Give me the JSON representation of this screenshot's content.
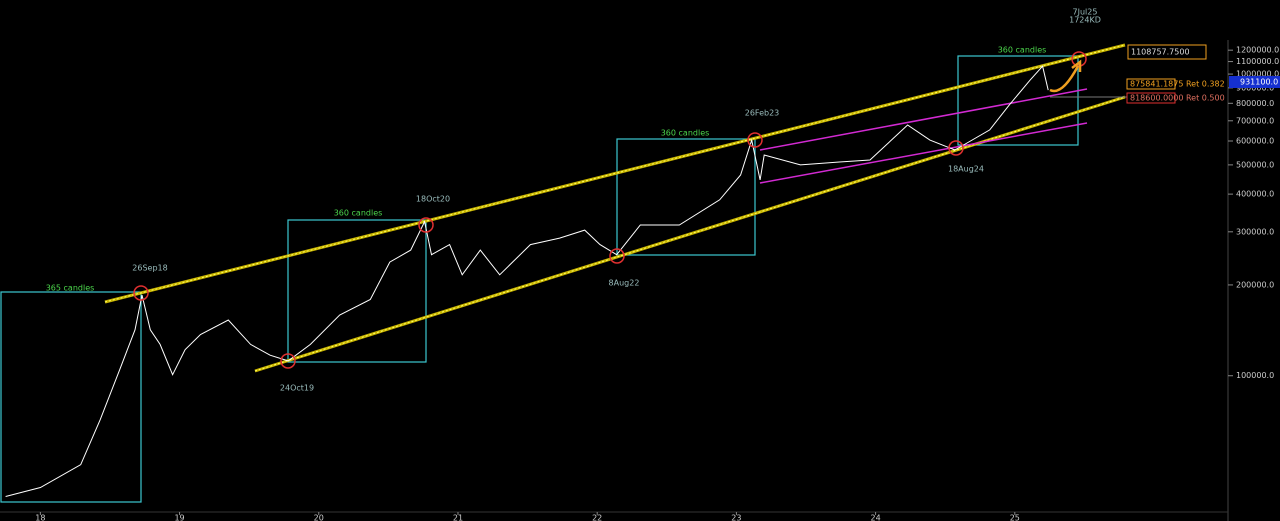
{
  "chart_data": {
    "type": "line",
    "log_scale": true,
    "grid": false,
    "background": "#000000",
    "series": [
      {
        "color": "#ffffff",
        "x": [
          17.75,
          18.0,
          18.29,
          18.43,
          18.57,
          18.68,
          18.73,
          18.79,
          18.86,
          18.95,
          19.04,
          19.15,
          19.35,
          19.51,
          19.65,
          19.78,
          19.94,
          20.15,
          20.37,
          20.51,
          20.66,
          20.76,
          20.81,
          20.94,
          21.03,
          21.16,
          21.3,
          21.52,
          21.73,
          21.91,
          22.02,
          22.14,
          22.31,
          22.59,
          22.88,
          23.03,
          23.11,
          23.17,
          23.2,
          23.46,
          23.74,
          23.96,
          24.23,
          24.39,
          24.57,
          24.82,
          24.96,
          25.11,
          25.2,
          25.24
        ],
        "values": [
          39800,
          42600,
          50700,
          71500,
          104700,
          142000,
          185000,
          142000,
          127000,
          100800,
          122000,
          137000,
          153000,
          127000,
          117000,
          112000,
          127000,
          159000,
          179000,
          238000,
          261000,
          324000,
          252000,
          272000,
          216000,
          261000,
          216000,
          272000,
          286000,
          304000,
          272000,
          252000,
          316000,
          316000,
          383000,
          463000,
          604000,
          446000,
          539000,
          500000,
          511000,
          519000,
          678000,
          604000,
          560000,
          653000,
          789000,
          955000,
          1062000,
          885000
        ]
      }
    ],
    "xlim": [
      17.71,
      26.51
    ],
    "xticks": [
      18,
      19,
      20,
      21,
      22,
      23,
      24,
      25
    ],
    "ylim": [
      33000,
      1760000
    ],
    "yticks": [
      {
        "value": 100000,
        "label": "100000.0"
      },
      {
        "value": 200000,
        "label": "200000.0"
      },
      {
        "value": 300000,
        "label": "300000.0"
      },
      {
        "value": 400000,
        "label": "400000.0"
      },
      {
        "value": 500000,
        "label": "500000.0"
      },
      {
        "value": 600000,
        "label": "600000.0"
      },
      {
        "value": 700000,
        "label": "700000.0"
      },
      {
        "value": 800000,
        "label": "800000.0"
      },
      {
        "value": 900000,
        "label": "900000.0"
      },
      {
        "value": 1000000,
        "label": "1000000.0"
      },
      {
        "value": 1100000,
        "label": "1100000.0"
      },
      {
        "value": 1200000,
        "label": "1200000.0"
      }
    ],
    "current_price": "931100.0",
    "annotations": [
      "365 candles",
      "360 candles",
      "360 candles",
      "360 candles",
      "26Sep18",
      "24Oct19",
      "18Oct20",
      "8Aug22",
      "26Feb23",
      "18Aug24",
      "7Jul25",
      "1724KD"
    ],
    "price_labels": [
      "1108757.7500",
      "875841.1875 Ret 0.382",
      "818600.0000 Ret 0.500"
    ]
  }
}
